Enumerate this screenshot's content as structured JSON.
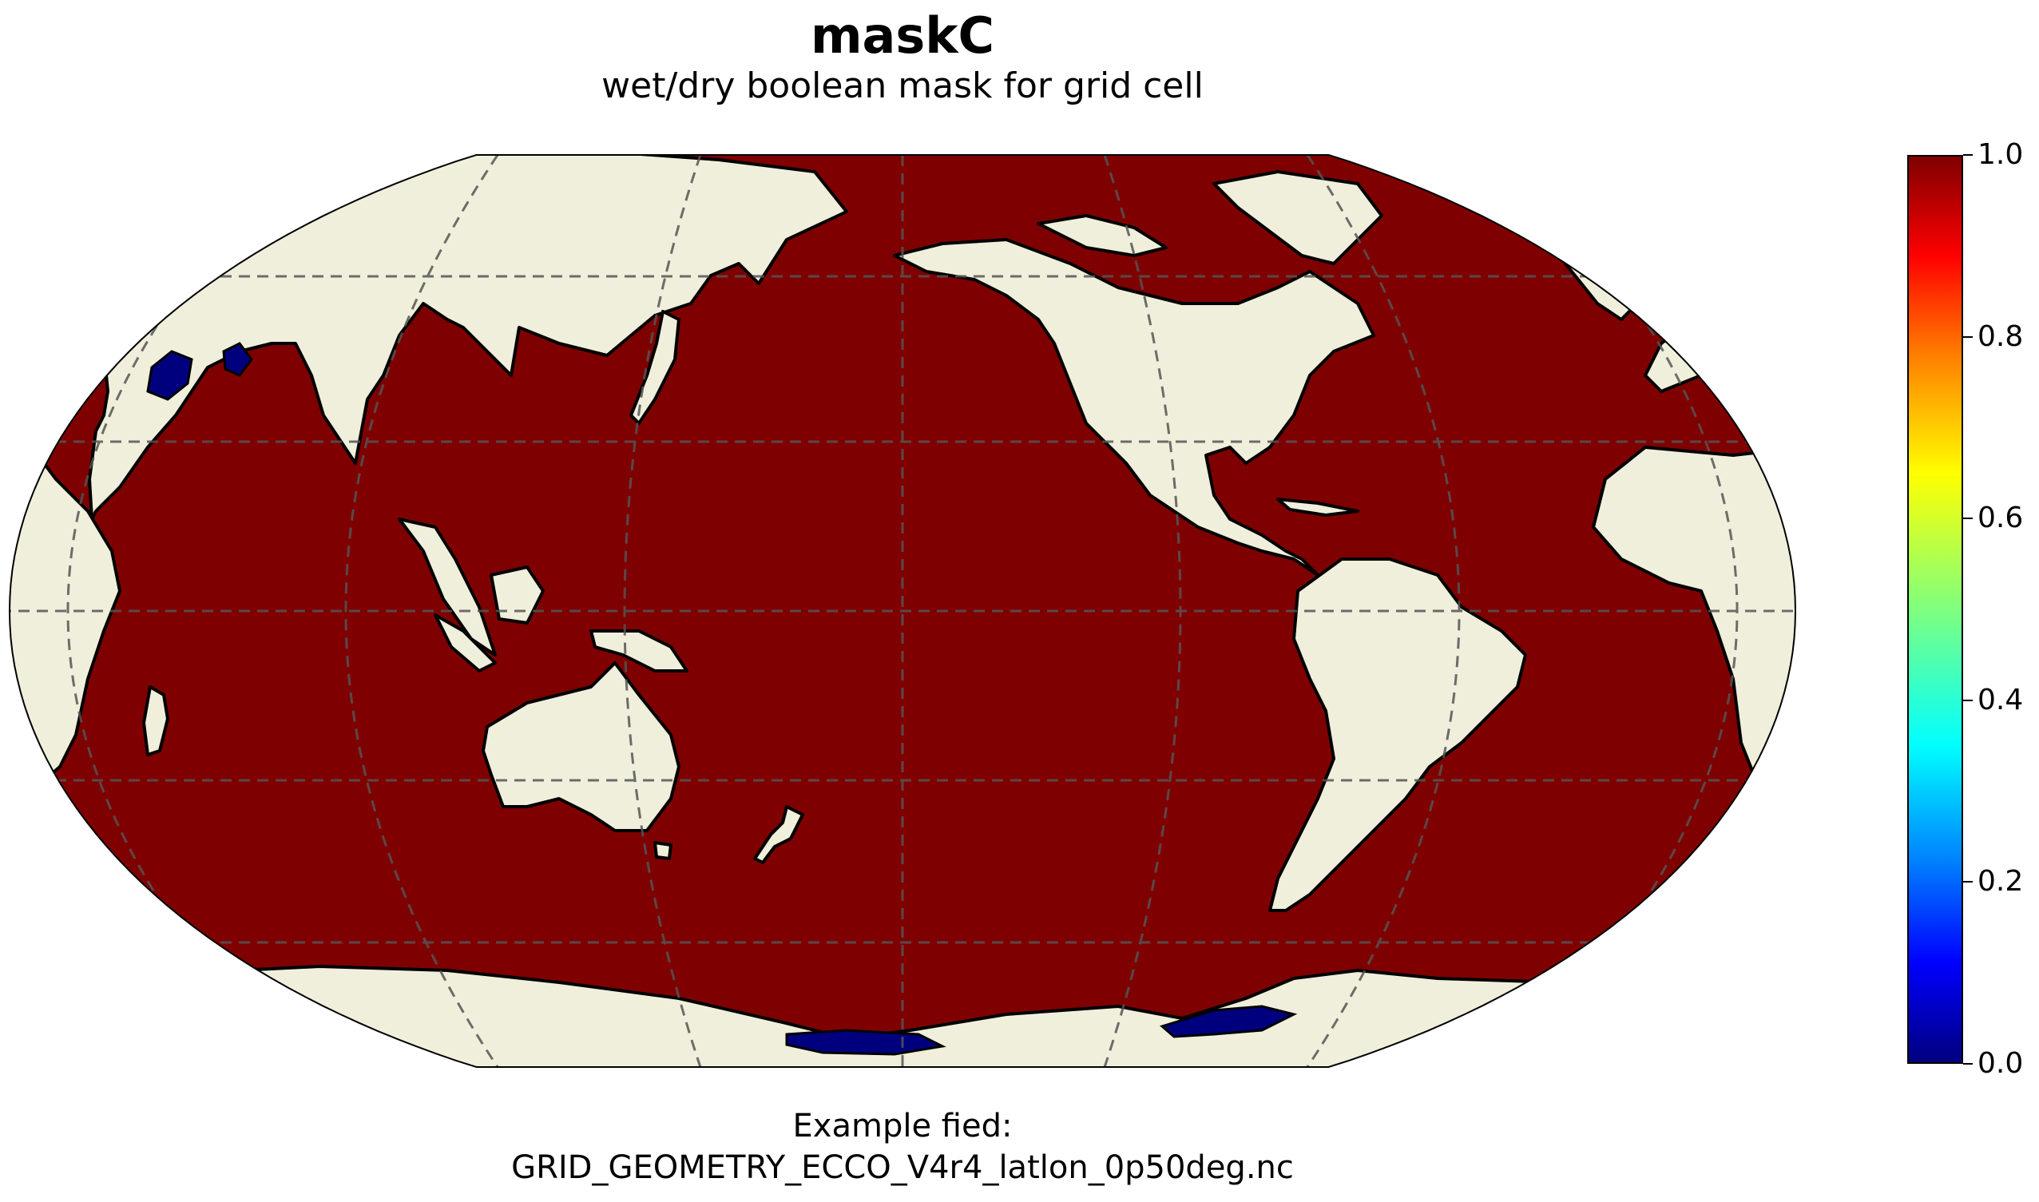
{
  "title": "maskC",
  "subtitle": "wet/dry boolean mask for grid cell",
  "footer": {
    "line1": "Example fied:",
    "line2": "GRID_GEOMETRY_ECCO_V4r4_latlon_0p50deg.nc"
  },
  "map": {
    "projection": "Robinson",
    "central_longitude": 180,
    "gridlines": true,
    "coastlines": true,
    "land_color": "#efefdb",
    "ocean_value": 1.0,
    "dry_value": 0.0
  },
  "colorbar": {
    "colormap": "jet",
    "min": 0.0,
    "max": 1.0,
    "ticks": [
      "0.0",
      "0.2",
      "0.4",
      "0.6",
      "0.8",
      "1.0"
    ],
    "wet_color": "#7f0000",
    "dry_color": "#00007f"
  }
}
